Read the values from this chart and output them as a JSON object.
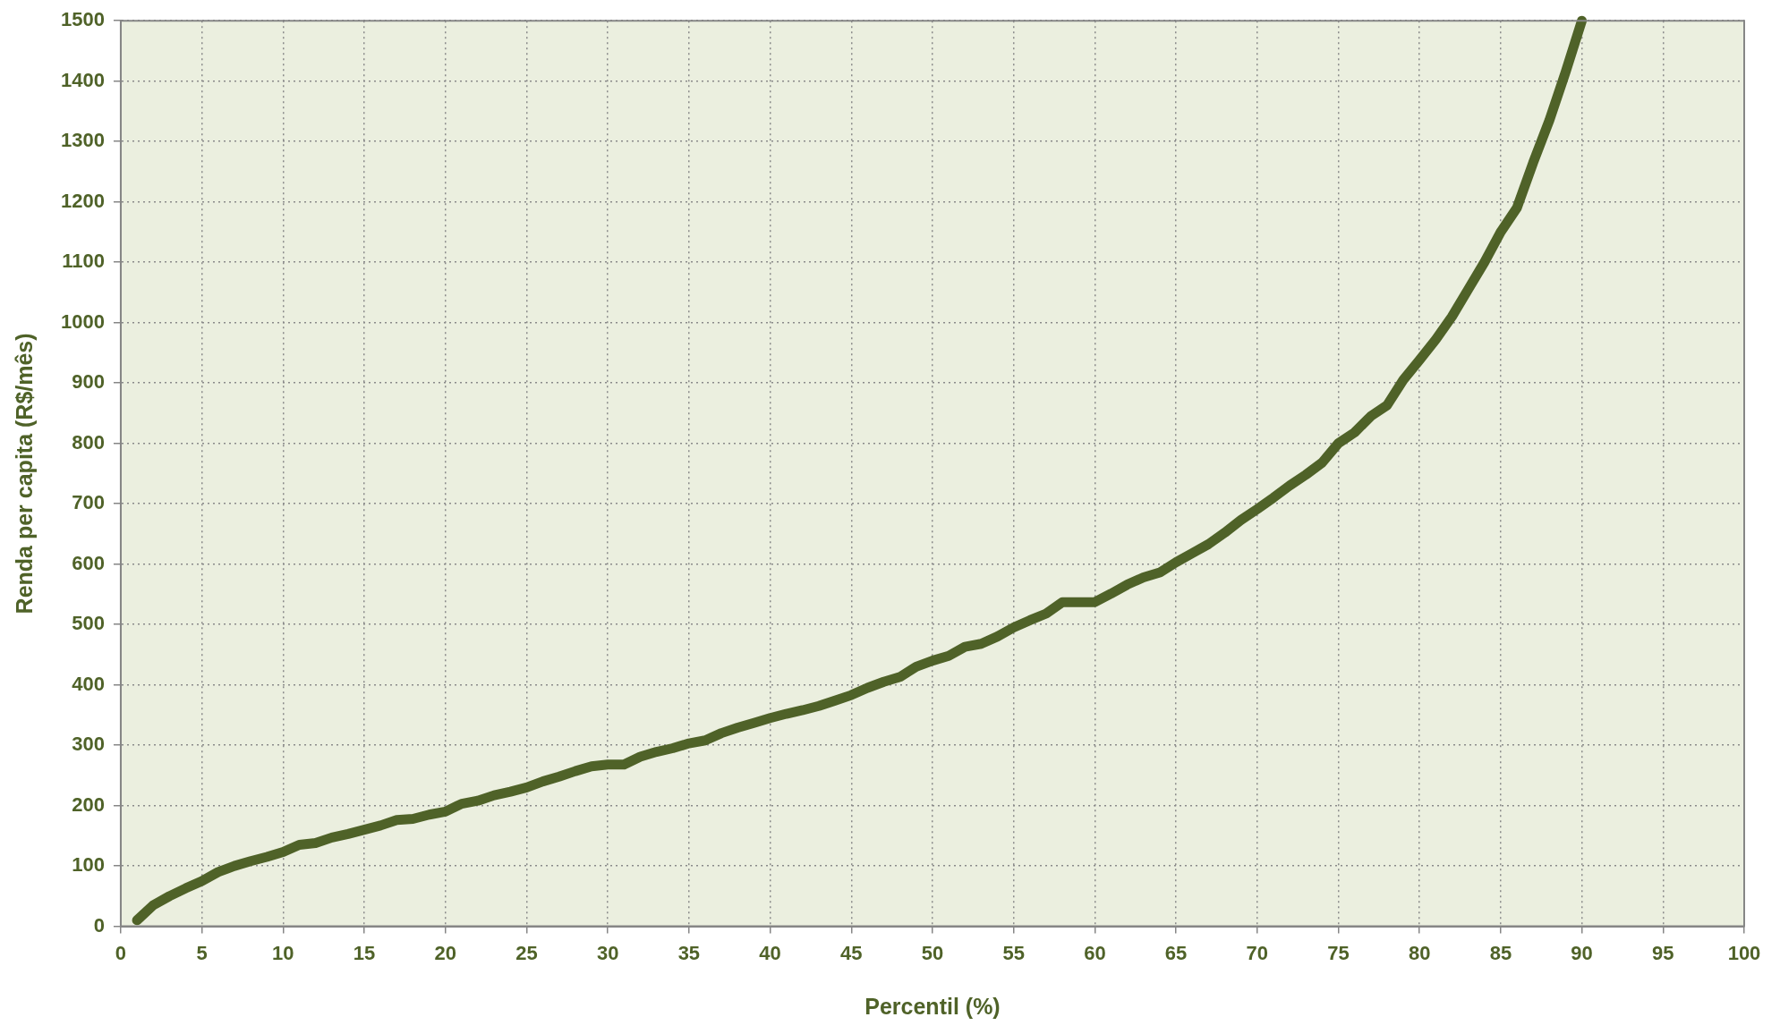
{
  "chart_data": {
    "type": "line",
    "xlabel": "Percentil (%)",
    "ylabel": "Renda per capita (R$/mês)",
    "x": [
      1,
      2,
      3,
      4,
      5,
      6,
      7,
      8,
      9,
      10,
      11,
      12,
      13,
      14,
      15,
      16,
      17,
      18,
      19,
      20,
      21,
      22,
      23,
      24,
      25,
      26,
      27,
      28,
      29,
      30,
      31,
      32,
      33,
      34,
      35,
      36,
      37,
      38,
      39,
      40,
      41,
      42,
      43,
      44,
      45,
      46,
      47,
      48,
      49,
      50,
      51,
      52,
      53,
      54,
      55,
      56,
      57,
      58,
      59,
      60,
      61,
      62,
      63,
      64,
      65,
      66,
      67,
      68,
      69,
      70,
      71,
      72,
      73,
      74,
      75,
      76,
      77,
      78,
      79,
      80,
      81,
      82,
      83,
      84,
      85,
      86,
      87,
      88,
      89,
      90
    ],
    "series": [
      {
        "color": "#4f6228",
        "values": [
          10,
          35,
          50,
          63,
          75,
          90,
          100,
          108,
          115,
          123,
          135,
          138,
          147,
          153,
          160,
          167,
          176,
          178,
          185,
          190,
          203,
          208,
          217,
          223,
          230,
          240,
          248,
          257,
          265,
          268,
          268,
          281,
          289,
          295,
          303,
          308,
          320,
          329,
          337,
          345,
          352,
          358,
          365,
          374,
          383,
          395,
          405,
          413,
          430,
          440,
          448,
          463,
          468,
          480,
          495,
          507,
          518,
          537,
          537,
          537,
          551,
          566,
          578,
          586,
          603,
          618,
          633,
          652,
          673,
          691,
          710,
          730,
          748,
          768,
          800,
          818,
          845,
          863,
          905,
          938,
          972,
          1010,
          1055,
          1100,
          1150,
          1190,
          1265,
          1335,
          1415,
          1500
        ]
      }
    ],
    "xlim": [
      0,
      100
    ],
    "xticks": [
      0,
      5,
      10,
      15,
      20,
      25,
      30,
      35,
      40,
      45,
      50,
      55,
      60,
      65,
      70,
      75,
      80,
      85,
      90,
      95,
      100
    ],
    "ylim": [
      0,
      1500
    ],
    "yticks": [
      0,
      100,
      200,
      300,
      400,
      500,
      600,
      700,
      800,
      900,
      1000,
      1100,
      1200,
      1300,
      1400,
      1500
    ],
    "grid": true,
    "legend": false,
    "marker": "none",
    "line_style": "solid"
  }
}
